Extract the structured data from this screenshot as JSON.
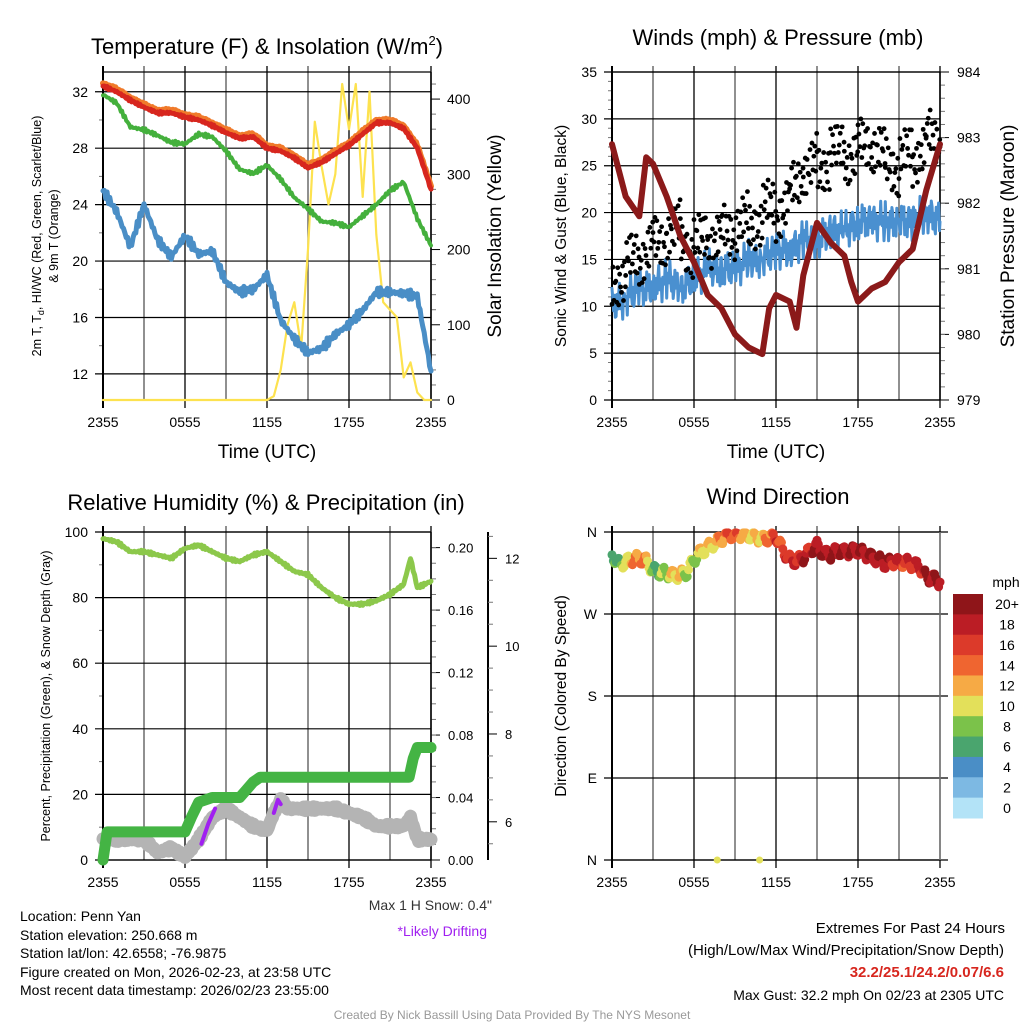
{
  "time_ticks": [
    "2355",
    "0555",
    "1155",
    "1755",
    "2355"
  ],
  "chart_data": [
    {
      "type": "line",
      "title": "Temperature (F) & Insolation (W/m",
      "title_sup": "2",
      "title_end": ")",
      "xlabel": "Time (UTC)",
      "ylabel_line1": "2m T, T",
      "ylabel_sub": "d",
      "ylabel_rest": ", HI/WC (Red, Green, Scarlet/Blue)",
      "ylabel_line2": "& 9m T (Orange)",
      "ylabel_right": "Solar Insolation (Yellow)",
      "ylim": [
        10.15,
        33.4
      ],
      "ylim_right": [
        0,
        436
      ],
      "yticks": [
        "12",
        "16",
        "20",
        "24",
        "28",
        "32"
      ],
      "yticks_right": [
        "0",
        "100",
        "200",
        "300",
        "400"
      ],
      "x_hours": [
        0,
        1,
        2,
        3,
        4,
        5,
        6,
        7,
        8,
        9,
        10,
        11,
        12,
        13,
        14,
        15,
        16,
        17,
        18,
        19,
        20,
        21,
        22,
        23,
        24
      ],
      "series": [
        {
          "name": "9m T",
          "color": "#f07a2a",
          "values": [
            32.6,
            32.2,
            31.6,
            31.1,
            30.7,
            30.7,
            30.4,
            30.2,
            29.8,
            29.3,
            28.9,
            29.0,
            28.2,
            28.0,
            27.5,
            26.8,
            27.2,
            27.8,
            28.4,
            29.2,
            30.0,
            30.0,
            29.6,
            28.2,
            25.3
          ]
        },
        {
          "name": "2m T",
          "color": "#d7261e",
          "values": [
            32.4,
            32.0,
            31.4,
            30.9,
            30.5,
            30.5,
            30.2,
            30.0,
            29.6,
            29.1,
            28.7,
            28.8,
            28.0,
            27.8,
            27.3,
            26.6,
            27.0,
            27.6,
            28.2,
            29.0,
            29.8,
            29.8,
            29.4,
            28.0,
            25.1
          ]
        },
        {
          "name": "Td",
          "color": "#44b03c",
          "values": [
            31.8,
            31.2,
            29.5,
            29.3,
            28.9,
            28.4,
            28.3,
            29.0,
            28.8,
            27.8,
            26.5,
            26.2,
            26.8,
            25.8,
            24.5,
            23.7,
            22.8,
            22.7,
            22.4,
            23.2,
            24.0,
            25.0,
            25.6,
            23.0,
            21.1
          ]
        },
        {
          "name": "Wind Chill",
          "color": "#4a8ec6",
          "values": [
            25.0,
            23.5,
            21.0,
            24.0,
            21.5,
            20.3,
            21.8,
            20.5,
            20.7,
            18.5,
            17.8,
            18.0,
            19.0,
            15.8,
            14.5,
            13.5,
            13.8,
            14.8,
            15.5,
            16.5,
            17.8,
            17.8,
            17.7,
            17.5,
            12.2
          ]
        }
      ],
      "solar": {
        "name": "Solar Insolation",
        "color": "#fde24f",
        "x_hours": [
          0,
          12,
          12.5,
          13,
          13.5,
          14,
          14.5,
          15,
          15.5,
          16,
          16.5,
          17,
          17.5,
          18,
          18.5,
          19,
          19.5,
          20,
          20.5,
          21,
          21.5,
          22,
          22.5,
          23,
          23.5,
          24
        ],
        "values": [
          0,
          0,
          5,
          40,
          100,
          130,
          70,
          200,
          370,
          310,
          260,
          300,
          420,
          360,
          420,
          270,
          410,
          220,
          130,
          120,
          110,
          30,
          50,
          10,
          0,
          0
        ]
      }
    },
    {
      "type": "line",
      "title": "Winds (mph) & Pressure (mb)",
      "xlabel": "Time (UTC)",
      "ylabel": "Sonic Wind & Gust (Blue, Black)",
      "ylabel_right": "Station Pressure (Maroon)",
      "ylim": [
        0,
        35
      ],
      "ylim_right": [
        979,
        984
      ],
      "yticks": [
        "0",
        "5",
        "10",
        "15",
        "20",
        "25",
        "30",
        "35"
      ],
      "yticks_right": [
        "979",
        "980",
        "981",
        "982",
        "983",
        "984"
      ],
      "wind": {
        "name": "Sonic Wind",
        "color": "#4a90d0",
        "x_hours": [
          0,
          1,
          2,
          3,
          4,
          5,
          6,
          7,
          8,
          9,
          10,
          11,
          12,
          13,
          14,
          15,
          16,
          17,
          18,
          19,
          20,
          21,
          22,
          23,
          24
        ],
        "values": [
          10,
          11,
          12,
          12,
          13,
          12,
          13,
          14,
          14,
          14,
          15,
          15,
          16,
          16,
          17,
          17,
          18,
          18,
          19,
          19,
          19,
          19,
          19,
          20,
          19
        ]
      },
      "gust": {
        "name": "Gust",
        "color": "#000000",
        "x_hours": [
          0,
          1,
          2,
          3,
          4,
          5,
          6,
          7,
          8,
          9,
          10,
          11,
          12,
          13,
          14,
          15,
          16,
          17,
          18,
          19,
          20,
          21,
          22,
          23,
          24
        ],
        "values": [
          13,
          14,
          15,
          17,
          17,
          18,
          16,
          17,
          18,
          18,
          19,
          20,
          20,
          22,
          24,
          25,
          26,
          26,
          27,
          27,
          26,
          25,
          26,
          28,
          27
        ]
      },
      "pressure": {
        "name": "Station Pressure",
        "color": "#8b1a1a",
        "x_hours": [
          0,
          1,
          2,
          2.5,
          3,
          4,
          5,
          6,
          7,
          8,
          9,
          10,
          11,
          11.5,
          12,
          13,
          13.5,
          14,
          15,
          16,
          17,
          17.5,
          18,
          19,
          20,
          21,
          22,
          23,
          24
        ],
        "values": [
          982.9,
          982.1,
          981.8,
          982.7,
          982.6,
          982.1,
          981.5,
          981.1,
          980.6,
          980.4,
          980.0,
          979.8,
          979.7,
          980.4,
          980.6,
          980.5,
          980.1,
          980.9,
          981.7,
          981.4,
          981.2,
          980.8,
          980.5,
          980.7,
          980.8,
          981.1,
          981.3,
          982.2,
          982.9
        ]
      }
    },
    {
      "type": "line",
      "title": "Relative Humidity (%) & Precipitation (in)",
      "ylabel": "Percent, Precipitation (Green), & Snow Depth (Gray)",
      "ylim": [
        0,
        100
      ],
      "ylim_precip": [
        0,
        0.21
      ],
      "ylim_snow": [
        5.13,
        12.6
      ],
      "yticks": [
        "0",
        "20",
        "40",
        "60",
        "80",
        "100"
      ],
      "yticks_precip": [
        "0.00",
        "0.04",
        "0.08",
        "0.12",
        "0.16",
        "0.20"
      ],
      "yticks_snow": [
        "6",
        "8",
        "10",
        "12"
      ],
      "rh": {
        "name": "RH",
        "color": "#8cc84b",
        "x_hours": [
          0,
          1,
          2,
          3,
          4,
          5,
          6,
          7,
          8,
          9,
          10,
          11,
          12,
          13,
          14,
          15,
          16,
          17,
          18,
          19,
          20,
          21,
          22,
          22.5,
          23,
          24
        ],
        "values": [
          98,
          97,
          94,
          94,
          93,
          92,
          95,
          96,
          94,
          92,
          91,
          93,
          94,
          91,
          88,
          87,
          83,
          80,
          78,
          78,
          79,
          81,
          84,
          92,
          83,
          85
        ]
      },
      "precip": {
        "name": "Precipitation",
        "color": "#44b444",
        "x_hours": [
          0,
          0.3,
          6,
          6.5,
          7,
          8,
          10,
          10.5,
          11,
          11.5,
          22.4,
          22.7,
          23,
          24
        ],
        "values": [
          0,
          0.018,
          0.018,
          0.028,
          0.037,
          0.04,
          0.04,
          0.045,
          0.05,
          0.053,
          0.053,
          0.065,
          0.072,
          0.072
        ]
      },
      "snow": {
        "name": "Snow Depth",
        "color": "#b4b4b4",
        "x_hours": [
          0,
          1,
          3,
          4,
          5,
          6,
          7,
          8,
          9,
          10,
          11,
          12,
          12.5,
          13,
          13.5,
          14,
          17,
          18,
          19,
          20,
          21,
          22,
          22.5,
          23,
          24
        ],
        "values": [
          5.6,
          5.6,
          5.6,
          5.3,
          5.4,
          5.2,
          5.6,
          6.1,
          6.3,
          6.1,
          5.9,
          5.8,
          6.2,
          6.5,
          6.3,
          6.3,
          6.3,
          6.2,
          6.1,
          5.9,
          5.9,
          5.9,
          6.1,
          5.6,
          5.6
        ]
      },
      "drifting": {
        "name": "Likely Drifting",
        "color": "#a020f0",
        "segments": [
          {
            "x_hours": [
              7.2,
              7.7,
              8.2
            ],
            "values": [
              5.5,
              5.95,
              6.3
            ]
          },
          {
            "x_hours": [
              12.5,
              12.8,
              13.0
            ],
            "values": [
              6.2,
              6.5,
              6.4
            ]
          }
        ]
      },
      "max_snow_label": "Max 1 H Snow: 0.4\"",
      "drifting_label": "*Likely Drifting"
    },
    {
      "type": "scatter",
      "title": "Wind Direction",
      "ylabel": "Direction (Colored By Speed)",
      "yticks": [
        "N",
        "E",
        "S",
        "W",
        "N"
      ],
      "ylim": [
        0,
        360
      ],
      "legend_title": "mph",
      "legend": [
        {
          "label": "0",
          "color": "#b3e3f7"
        },
        {
          "label": "2",
          "color": "#7db9e3"
        },
        {
          "label": "4",
          "color": "#4a8ec6"
        },
        {
          "label": "6",
          "color": "#4aa56e"
        },
        {
          "label": "8",
          "color": "#7bc24a"
        },
        {
          "label": "10",
          "color": "#e3e05a"
        },
        {
          "label": "12",
          "color": "#f6aa45"
        },
        {
          "label": "14",
          "color": "#ef6530"
        },
        {
          "label": "16",
          "color": "#dc3a2a"
        },
        {
          "label": "18",
          "color": "#bb1d25"
        },
        {
          "label": "20+",
          "color": "#8f1519"
        }
      ],
      "points": {
        "x_hours": [
          0,
          0.5,
          1,
          1.5,
          2,
          2.5,
          3,
          3.5,
          4,
          4.5,
          5,
          5.5,
          6,
          6.5,
          7,
          7.5,
          8,
          8.5,
          9,
          9.5,
          10,
          10.5,
          11,
          11.5,
          12,
          12.5,
          13,
          13.5,
          14,
          14.5,
          15,
          15.5,
          16,
          16.5,
          17,
          17.5,
          18,
          18.5,
          19,
          19.5,
          20,
          20.5,
          21,
          21.5,
          22,
          22.5,
          23,
          23.5,
          24
        ],
        "direction": [
          335,
          325,
          327,
          330,
          331,
          328,
          318,
          316,
          315,
          312,
          313,
          316,
          330,
          338,
          343,
          348,
          352,
          358,
          356,
          358,
          357,
          355,
          352,
          354,
          355,
          340,
          330,
          328,
          332,
          340,
          345,
          336,
          335,
          340,
          338,
          339,
          340,
          336,
          332,
          330,
          325,
          328,
          326,
          327,
          324,
          322,
          310,
          309,
          305
        ],
        "speed": [
          6,
          8,
          10,
          14,
          14,
          14,
          7,
          9,
          10,
          12,
          12,
          10,
          10,
          11,
          12,
          12,
          14,
          16,
          16,
          14,
          12,
          12,
          12,
          15,
          17,
          16,
          18,
          17,
          20,
          18,
          20,
          20,
          20,
          20,
          20,
          20,
          20,
          20,
          20,
          19,
          20,
          18,
          18,
          17,
          18,
          18,
          20,
          20,
          18
        ]
      },
      "calm_points": {
        "x_hours": [
          7.7,
          10.8
        ],
        "direction": [
          0,
          0
        ],
        "speed": [
          10,
          10
        ]
      }
    }
  ],
  "footer": {
    "location": "Location: Penn Yan",
    "elevation": "Station elevation: 250.668 m",
    "latlon": "Station lat/lon: 42.6558; -76.9875",
    "created": "Figure created on Mon, 2026-02-23, at 23:58 UTC",
    "recent": "Most recent data timestamp: 2026/02/23 23:55:00",
    "extremes_title": "Extremes For Past 24 Hours",
    "extremes_sub": "(High/Low/Max Wind/Precipitation/Snow Depth)",
    "extremes_values": "32.2/25.1/24.2/0.07/6.6",
    "extremes_color": "#d7261e",
    "max_gust": "Max Gust: 32.2 mph On 02/23 at 2305 UTC",
    "credit": "Created By Nick Bassill Using Data Provided By The NYS Mesonet"
  }
}
